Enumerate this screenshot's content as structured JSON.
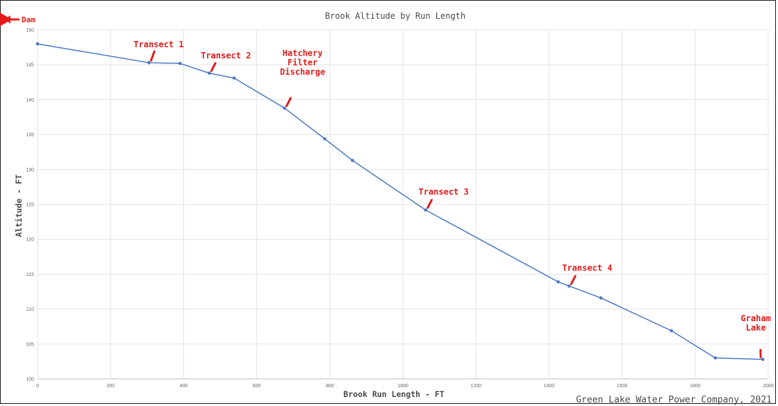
{
  "chart_data": {
    "type": "line",
    "title": "Brook Altitude by Run Length",
    "xlabel": "Brook Run Length - FT",
    "ylabel": "Altitude - FT",
    "xlim": [
      0,
      2000
    ],
    "ylim": [
      100,
      150
    ],
    "xticks": [
      0,
      200,
      400,
      600,
      800,
      1000,
      1200,
      1400,
      1600,
      1800,
      2000
    ],
    "yticks": [
      100,
      105,
      110,
      115,
      120,
      125,
      130,
      135,
      140,
      145,
      150
    ],
    "grid": true,
    "series": [
      {
        "x": [
          0,
          305,
          390,
          470,
          538,
          676,
          786,
          862,
          1062,
          1425,
          1455,
          1542,
          1735,
          1855,
          1985
        ],
        "y": [
          148.0,
          145.3,
          145.2,
          143.8,
          143.1,
          138.8,
          134.4,
          131.3,
          124.2,
          113.9,
          113.3,
          111.6,
          106.9,
          103.0,
          102.8
        ]
      }
    ],
    "color": "#4a76c4",
    "annotations": [
      {
        "text": "Transect 1",
        "x": 305,
        "y": 145.3
      },
      {
        "text": "Transect 2",
        "x": 470,
        "y": 143.8
      },
      {
        "text": "Hatchery\nFilter\nDischarge",
        "x": 676,
        "y": 138.8
      },
      {
        "text": "Transect 3",
        "x": 1062,
        "y": 124.2
      },
      {
        "text": "Transect 4",
        "x": 1455,
        "y": 113.3
      },
      {
        "text": "Graham\nLake",
        "x": 1985,
        "y": 102.8
      }
    ],
    "annotation_color": "#e41b1b"
  },
  "labels": {
    "dam": "Dam",
    "credit": "Green Lake Water Power Company, 2021"
  }
}
